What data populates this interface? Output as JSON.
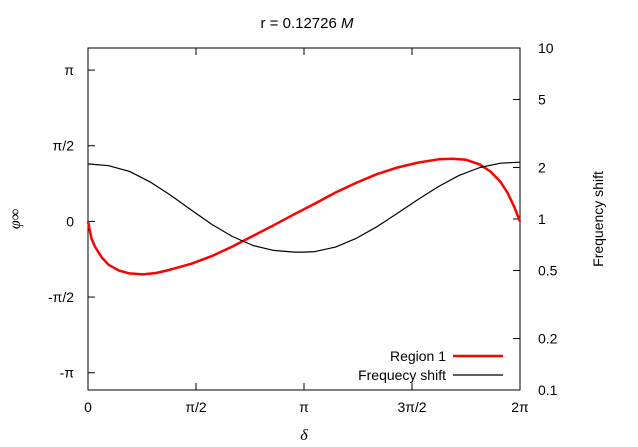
{
  "chart_data": {
    "type": "line",
    "title_prefix": "r = 0.12726 ",
    "title_unit": "M",
    "xlabel": "δ",
    "ylabel": "φ∞",
    "y2label": "Frequency shift",
    "xlim": [
      0,
      6.2832
    ],
    "ylim": [
      -3.5,
      3.6
    ],
    "y2lim": [
      0.1,
      10
    ],
    "y2scale": "log",
    "x_ticks": [
      {
        "value": 0,
        "label": "0"
      },
      {
        "value": 1.5708,
        "label": "π/2"
      },
      {
        "value": 3.1416,
        "label": "π"
      },
      {
        "value": 4.7124,
        "label": "3π/2"
      },
      {
        "value": 6.2832,
        "label": "2π"
      }
    ],
    "y_ticks": [
      {
        "value": 3.1416,
        "label": "π"
      },
      {
        "value": 1.5708,
        "label": "π/2"
      },
      {
        "value": 0,
        "label": "0"
      },
      {
        "value": -1.5708,
        "label": "-π/2"
      },
      {
        "value": -3.1416,
        "label": "-π"
      }
    ],
    "y2_ticks": [
      {
        "value": 10,
        "label": "10"
      },
      {
        "value": 5,
        "label": "5"
      },
      {
        "value": 2,
        "label": "2"
      },
      {
        "value": 1,
        "label": "1"
      },
      {
        "value": 0.5,
        "label": "0.5"
      },
      {
        "value": 0.2,
        "label": "0.2"
      },
      {
        "value": 0.1,
        "label": "0.1"
      }
    ],
    "legend_position": "bottom-right",
    "series": [
      {
        "name": "Region 1",
        "color": "#ff0000",
        "axis": "left",
        "x": [
          0,
          0.05,
          0.1,
          0.2,
          0.3,
          0.45,
          0.6,
          0.8,
          1.0,
          1.2,
          1.5,
          1.8,
          2.1,
          2.4,
          2.7,
          3.0,
          3.3,
          3.6,
          3.9,
          4.2,
          4.5,
          4.8,
          5.1,
          5.3,
          5.5,
          5.7,
          5.85,
          6.0,
          6.1,
          6.2,
          6.2832
        ],
        "y": [
          0,
          -0.35,
          -0.52,
          -0.75,
          -0.9,
          -1.02,
          -1.08,
          -1.1,
          -1.07,
          -1.0,
          -0.88,
          -0.72,
          -0.52,
          -0.3,
          -0.08,
          0.15,
          0.37,
          0.6,
          0.8,
          0.98,
          1.12,
          1.22,
          1.29,
          1.3,
          1.28,
          1.18,
          1.04,
          0.82,
          0.6,
          0.3,
          0
        ]
      },
      {
        "name": "Frequecy shift",
        "color": "#000000",
        "axis": "right",
        "x": [
          0,
          0.3,
          0.6,
          0.9,
          1.2,
          1.5,
          1.8,
          2.1,
          2.4,
          2.7,
          3.0,
          3.1416,
          3.3,
          3.6,
          3.9,
          4.2,
          4.5,
          4.8,
          5.1,
          5.4,
          5.7,
          6.0,
          6.2832
        ],
        "y": [
          2.1,
          2.05,
          1.9,
          1.65,
          1.38,
          1.13,
          0.93,
          0.79,
          0.7,
          0.655,
          0.64,
          0.64,
          0.645,
          0.685,
          0.77,
          0.9,
          1.08,
          1.3,
          1.55,
          1.8,
          2.0,
          2.12,
          2.15
        ]
      }
    ]
  }
}
